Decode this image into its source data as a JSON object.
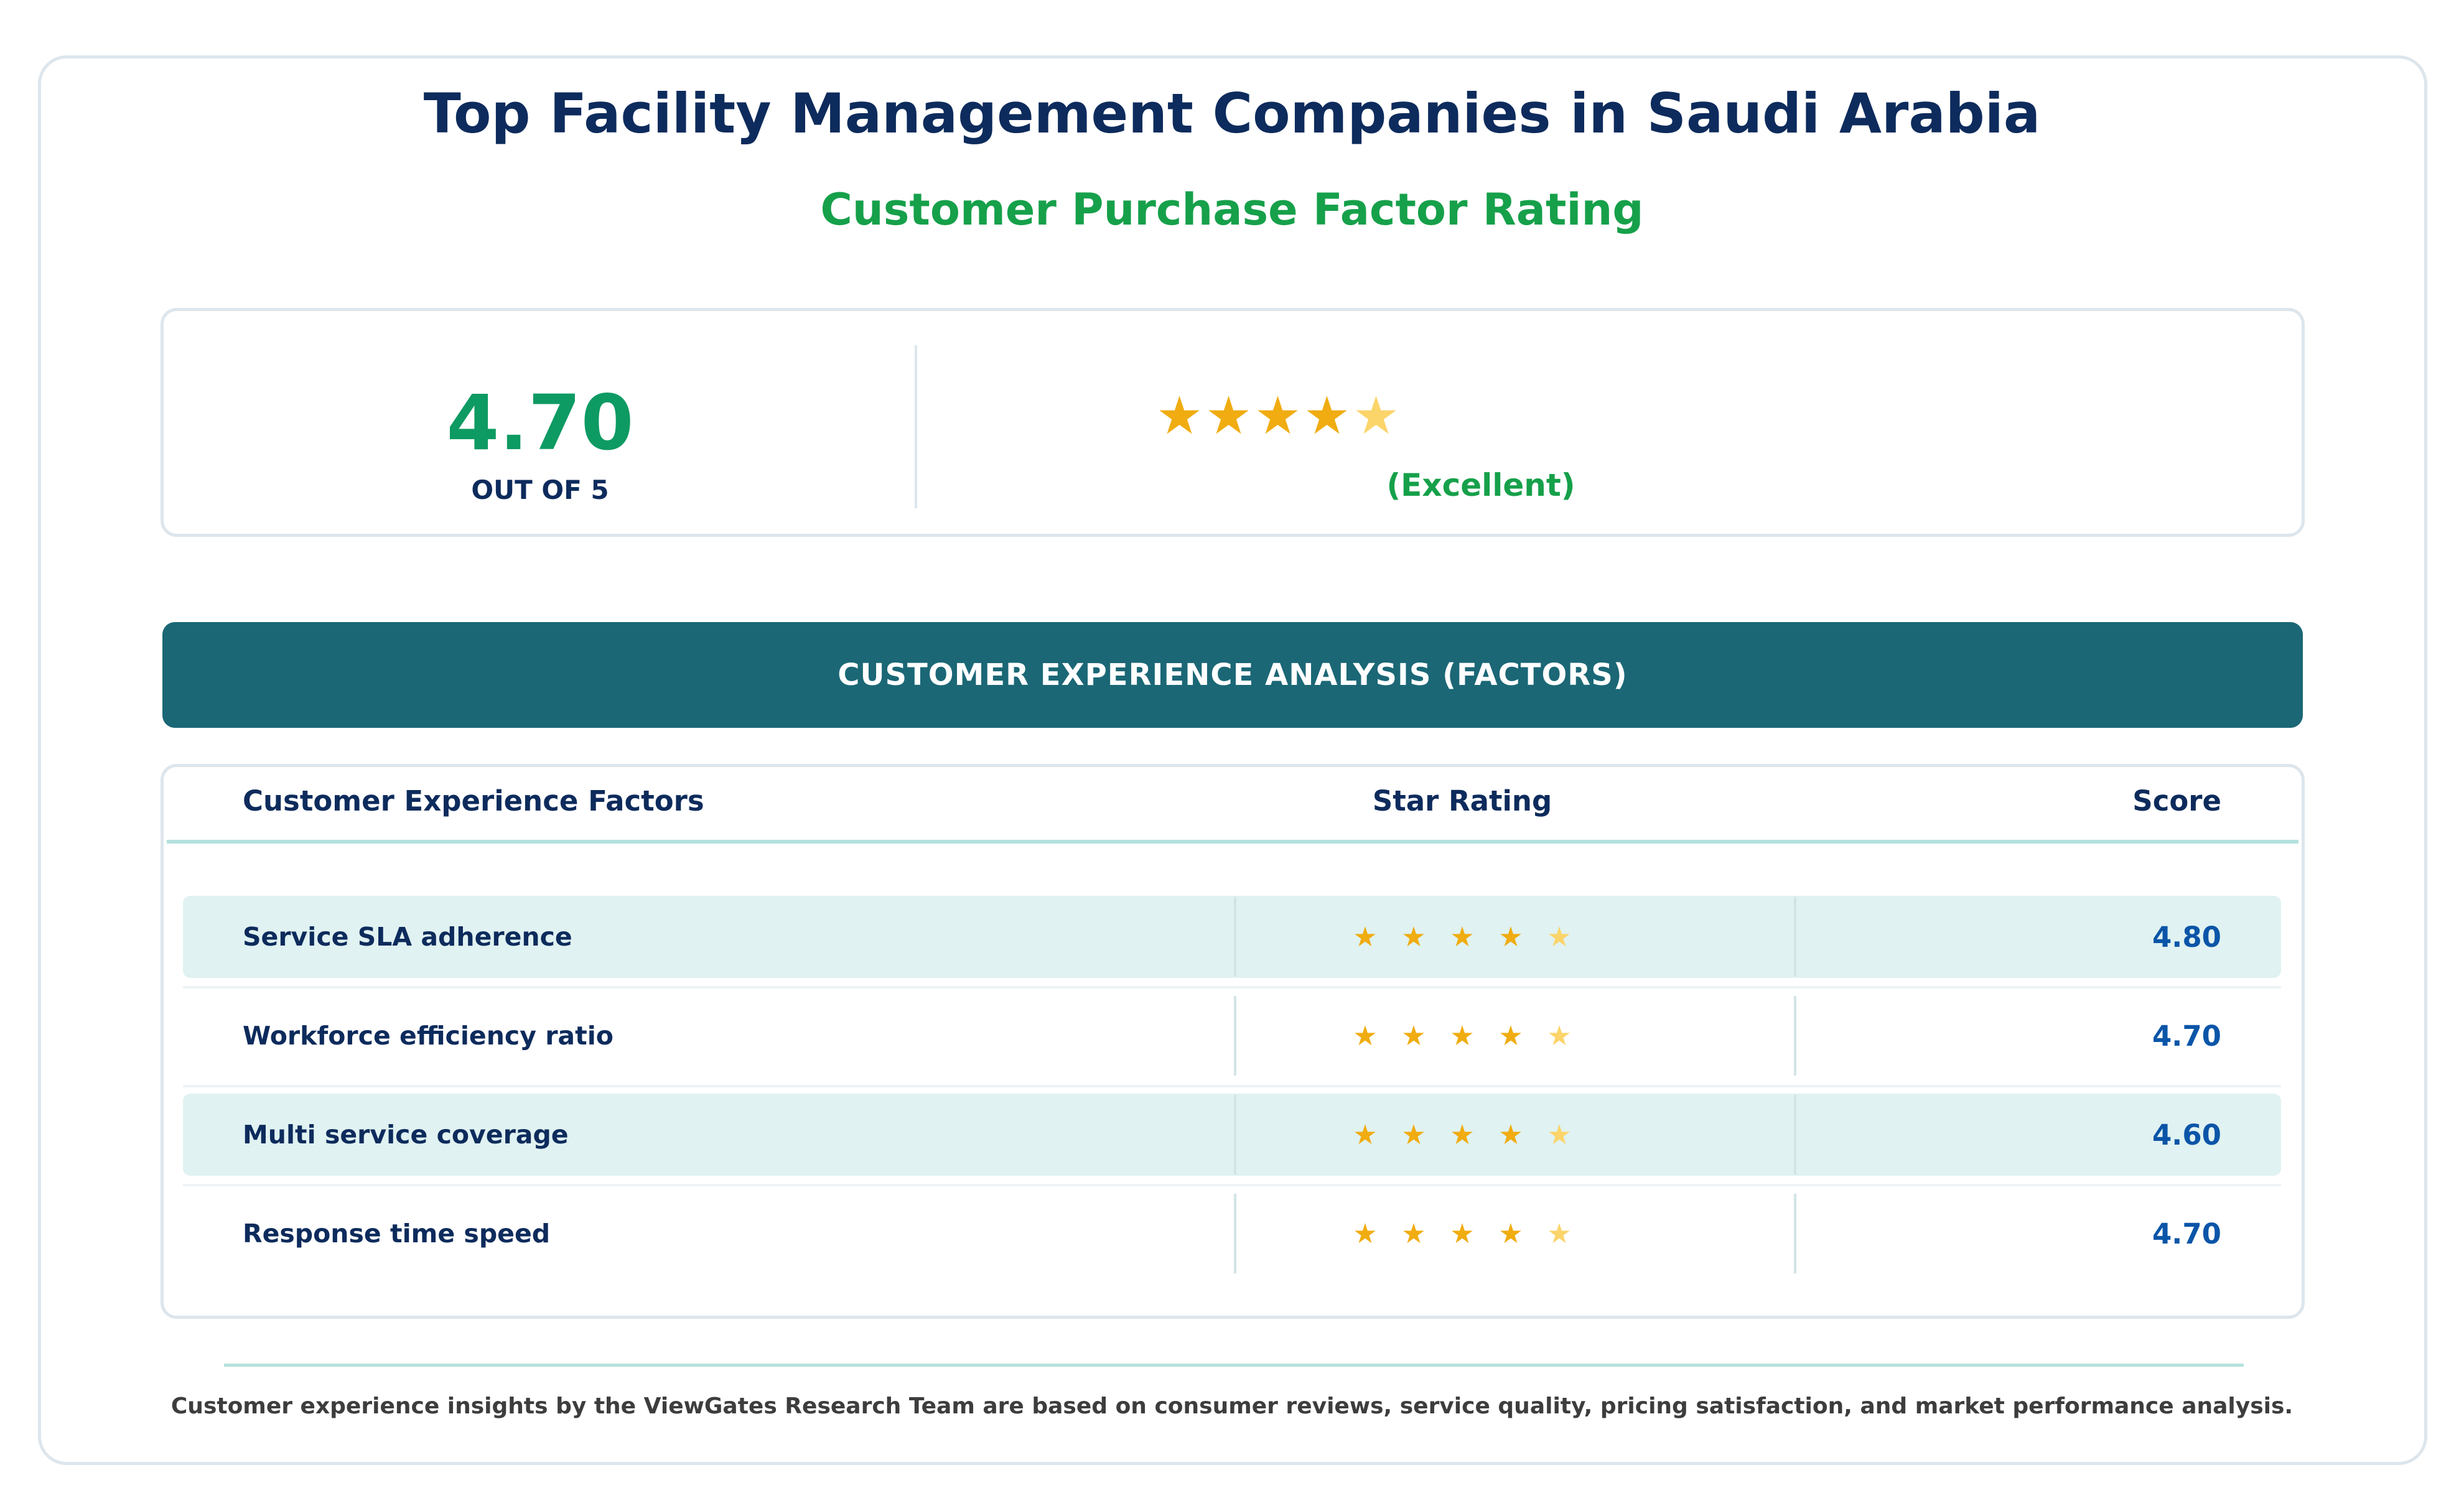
{
  "title": "Top Facility Management Companies in Saudi Arabia",
  "subtitle": "Customer Purchase Factor Rating",
  "summary": {
    "score": "4.70",
    "out_of": "OUT OF 5",
    "stars": 4.5,
    "rating_label": "(Excellent)"
  },
  "banner": "CUSTOMER EXPERIENCE ANALYSIS (FACTORS)",
  "table": {
    "headers": {
      "factor": "Customer Experience Factors",
      "stars": "Star Rating",
      "score": "Score"
    },
    "rows": [
      {
        "factor": "Service SLA adherence",
        "stars": 4.5,
        "score": "4.80"
      },
      {
        "factor": "Workforce efficiency ratio",
        "stars": 4.5,
        "score": "4.70"
      },
      {
        "factor": "Multi service coverage",
        "stars": 4.5,
        "score": "4.60"
      },
      {
        "factor": "Response time speed",
        "stars": 4.5,
        "score": "4.70"
      }
    ]
  },
  "footnote": "Customer experience insights by the ViewGates Research Team are based on consumer reviews, service quality, pricing satisfaction, and market performance analysis.",
  "colors": {
    "title": "#0d2b5c",
    "accent_green": "#16a04a",
    "score_green": "#0e9a63",
    "banner": "#1b6776",
    "star": "#f0ac10",
    "star_half": "#fbd46a",
    "score_blue": "#0b55a8"
  },
  "icons": {
    "star": "star-icon",
    "half_star": "half-star-icon"
  }
}
